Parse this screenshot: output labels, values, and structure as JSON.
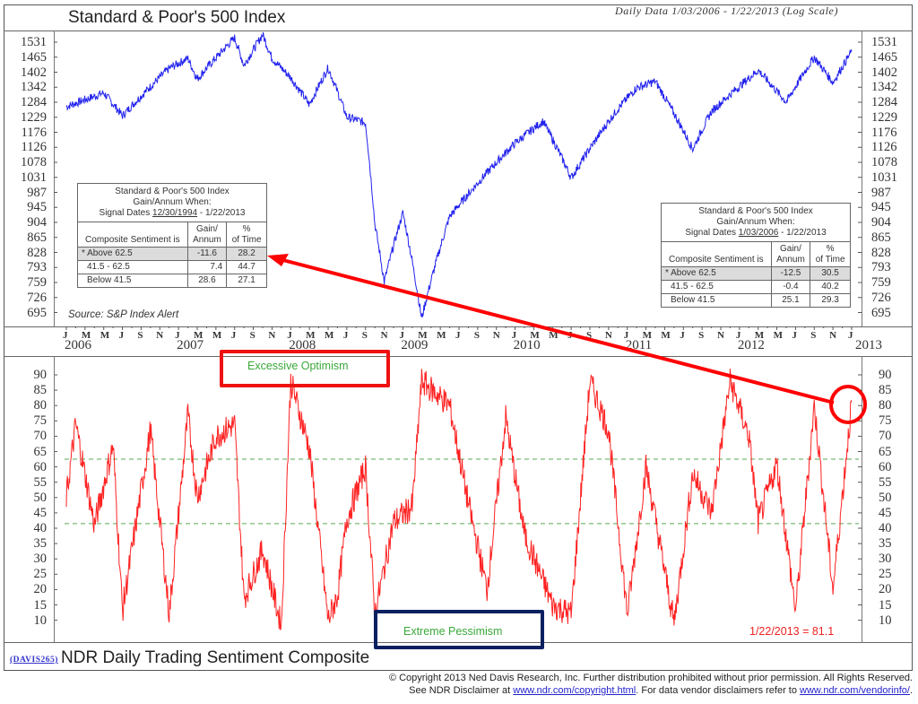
{
  "header": {
    "title": "Standard & Poor's 500 Index",
    "subtitle": "Daily Data 1/03/2006 - 1/22/2013 (Log Scale)"
  },
  "top_chart": {
    "y_ticks": [
      "1531",
      "1465",
      "1402",
      "1342",
      "1284",
      "1229",
      "1176",
      "1126",
      "1078",
      "1031",
      "987",
      "945",
      "904",
      "865",
      "828",
      "793",
      "759",
      "726",
      "695"
    ],
    "source": "Source: S&P Index Alert",
    "line_color": "#2222ee"
  },
  "table_left": {
    "title_line1": "Standard & Poor's 500 Index",
    "title_line2": "Gain/Annum When:",
    "signal_prefix": "Signal Dates",
    "signal_start": "12/30/1994",
    "signal_end": "- 1/22/2013",
    "col_headers": [
      "Composite Sentiment is",
      "Gain/ Annum",
      "% of Time"
    ],
    "col1_l1": "Gain/",
    "col1_l2": "Annum",
    "col2_l1": "%",
    "col2_l2": "of Time",
    "rows": [
      {
        "label": "* Above 62.5",
        "gain": "-11.6",
        "time": "28.2"
      },
      {
        "label": "41.5 - 62.5",
        "gain": "7.4",
        "time": "44.7"
      },
      {
        "label": "Below 41.5",
        "gain": "28.6",
        "time": "27.1"
      }
    ]
  },
  "table_right": {
    "title_line1": "Standard & Poor's 500 Index",
    "title_line2": "Gain/Annum When:",
    "signal_prefix": "Signal Dates",
    "signal_start": "1/03/2006",
    "signal_end": "- 1/22/2013",
    "col_headers": [
      "Composite Sentiment is",
      "Gain/ Annum",
      "% of Time"
    ],
    "col1_l1": "Gain/",
    "col1_l2": "Annum",
    "col2_l1": "%",
    "col2_l2": "of Time",
    "rows": [
      {
        "label": "* Above 62.5",
        "gain": "-12.5",
        "time": "30.5"
      },
      {
        "label": "41.5 - 62.5",
        "gain": "-0.4",
        "time": "40.2"
      },
      {
        "label": "Below 41.5",
        "gain": "25.1",
        "time": "29.3"
      }
    ]
  },
  "x_axis": {
    "months": [
      "J",
      "M",
      "M",
      "J",
      "S",
      "N"
    ],
    "years": [
      "2006",
      "2007",
      "2008",
      "2009",
      "2010",
      "2011",
      "2012",
      "2013"
    ]
  },
  "bottom_chart": {
    "y_ticks": [
      "90",
      "85",
      "80",
      "75",
      "70",
      "65",
      "60",
      "55",
      "50",
      "45",
      "40",
      "35",
      "30",
      "25",
      "20",
      "15",
      "10"
    ],
    "upper_threshold": 62.5,
    "lower_threshold": 41.5,
    "excessive_label": "Excessive Optimism",
    "pessimism_label": "Extreme Pessimism",
    "last_value_label": "1/22/2013 = 81.1",
    "line_color": "#ff2222",
    "threshold_color": "#55aa55"
  },
  "footer": {
    "davis_code": "(DAVIS265)",
    "title": "NDR Daily Trading Sentiment Composite",
    "copyright": "© Copyright 2013 Ned Davis Research, Inc.  Further distribution prohibited without prior permission.  All Rights Reserved.",
    "disclaimer_prefix": "See NDR Disclaimer at",
    "disclaimer_link1": "www.ndr.com/copyright.html",
    "disclaimer_mid": ". For data vendor disclaimers refer to",
    "disclaimer_link2": "www.ndr.com/vendorinfo/",
    "disclaimer_suffix": "."
  },
  "chart_data": [
    {
      "type": "line",
      "title": "Standard & Poor's 500 Index",
      "subtitle": "Daily Data 1/03/2006 - 1/22/2013 (Log Scale)",
      "xlabel": "",
      "ylabel": "",
      "y_scale": "log",
      "ylim": [
        680,
        1580
      ],
      "y_ticks": [
        1531,
        1465,
        1402,
        1342,
        1284,
        1229,
        1176,
        1126,
        1078,
        1031,
        987,
        945,
        904,
        865,
        828,
        793,
        759,
        726,
        695
      ],
      "x": [
        "2006-01",
        "2006-05",
        "2006-07",
        "2006-12",
        "2007-02",
        "2007-03",
        "2007-07",
        "2007-08",
        "2007-10",
        "2007-11",
        "2008-01",
        "2008-03",
        "2008-05",
        "2008-07",
        "2008-09",
        "2008-10",
        "2008-11",
        "2009-01",
        "2009-03",
        "2009-06",
        "2010-01",
        "2010-04",
        "2010-07",
        "2010-12",
        "2011-02",
        "2011-04",
        "2011-08",
        "2011-10",
        "2012-03",
        "2012-06",
        "2012-09",
        "2012-11",
        "2013-01"
      ],
      "series": [
        {
          "name": "S&P 500",
          "values": [
            1268,
            1320,
            1235,
            1418,
            1460,
            1375,
            1550,
            1430,
            1565,
            1460,
            1380,
            1275,
            1420,
            1230,
            1210,
            900,
            760,
            930,
            683,
            920,
            1140,
            1215,
            1030,
            1260,
            1340,
            1365,
            1120,
            1250,
            1410,
            1285,
            1465,
            1360,
            1490
          ]
        }
      ],
      "annotations": [
        {
          "type": "table",
          "title": "Standard & Poor's 500 Index Gain/Annum When: Signal Dates 12/30/1994 - 1/22/2013",
          "rows": [
            [
              "* Above 62.5",
              -11.6,
              28.2
            ],
            [
              "41.5 - 62.5",
              7.4,
              44.7
            ],
            [
              "Below 41.5",
              28.6,
              27.1
            ]
          ],
          "columns": [
            "Composite Sentiment is",
            "Gain/Annum",
            "% of Time"
          ]
        },
        {
          "type": "table",
          "title": "Standard & Poor's 500 Index Gain/Annum When: Signal Dates 1/03/2006 - 1/22/2013",
          "rows": [
            [
              "* Above 62.5",
              -12.5,
              30.5
            ],
            [
              "41.5 - 62.5",
              -0.4,
              40.2
            ],
            [
              "Below 41.5",
              25.1,
              29.3
            ]
          ],
          "columns": [
            "Composite Sentiment is",
            "Gain/Annum",
            "% of Time"
          ]
        },
        {
          "type": "text",
          "text": "Source: S&P Index Alert"
        }
      ]
    },
    {
      "type": "line",
      "title": "NDR Daily Trading Sentiment Composite",
      "xlabel": "",
      "ylabel": "",
      "ylim": [
        5,
        95
      ],
      "y_ticks": [
        90,
        85,
        80,
        75,
        70,
        65,
        60,
        55,
        50,
        45,
        40,
        35,
        30,
        25,
        20,
        15,
        10
      ],
      "x_tick_labels": [
        "J",
        "M",
        "M",
        "J",
        "S",
        "N"
      ],
      "x_year_labels": [
        "2006",
        "2007",
        "2008",
        "2009",
        "2010",
        "2011",
        "2012",
        "2013"
      ],
      "grid": false,
      "x": [
        "2006-01",
        "2006-02",
        "2006-04",
        "2006-06",
        "2006-07",
        "2006-10",
        "2006-12",
        "2007-02",
        "2007-03",
        "2007-05",
        "2007-07",
        "2007-08",
        "2007-10",
        "2007-12",
        "2008-01",
        "2008-03",
        "2008-05",
        "2008-06",
        "2008-07",
        "2008-09",
        "2008-10",
        "2008-12",
        "2009-02",
        "2009-03",
        "2009-06",
        "2009-08",
        "2009-10",
        "2009-12",
        "2010-02",
        "2010-05",
        "2010-07",
        "2010-09",
        "2010-11",
        "2011-01",
        "2011-03",
        "2011-06",
        "2011-08",
        "2011-10",
        "2011-12",
        "2012-02",
        "2012-03",
        "2012-05",
        "2012-07",
        "2012-09",
        "2012-10",
        "2012-11",
        "2013-01"
      ],
      "series": [
        {
          "name": "Composite Sentiment",
          "values": [
            50,
            74,
            41,
            67,
            13,
            72,
            12,
            77,
            50,
            70,
            74,
            17,
            33,
            8,
            88,
            66,
            10,
            18,
            43,
            60,
            12,
            42,
            47,
            88,
            80,
            48,
            20,
            76,
            38,
            15,
            12,
            88,
            72,
            12,
            60,
            9,
            58,
            45,
            88,
            70,
            42,
            61,
            13,
            80,
            50,
            20,
            81.1
          ]
        }
      ],
      "reference_lines": [
        {
          "y": 62.5,
          "style": "dashed",
          "color": "#55aa55"
        },
        {
          "y": 41.5,
          "style": "dashed",
          "color": "#55aa55"
        }
      ],
      "annotations": [
        {
          "type": "box",
          "text": "Excessive Optimism",
          "color": "#ee1111"
        },
        {
          "type": "box",
          "text": "Extreme Pessimism",
          "color": "#0a2060"
        },
        {
          "type": "text",
          "text": "1/22/2013 = 81.1",
          "color": "#ee2222"
        },
        {
          "type": "circle",
          "target": "1/22/2013",
          "value": 81.1
        },
        {
          "type": "arrow",
          "from": "2013-01 point (81.1)",
          "to": "Above 62.5 row, % of Time 28.2"
        }
      ]
    }
  ]
}
